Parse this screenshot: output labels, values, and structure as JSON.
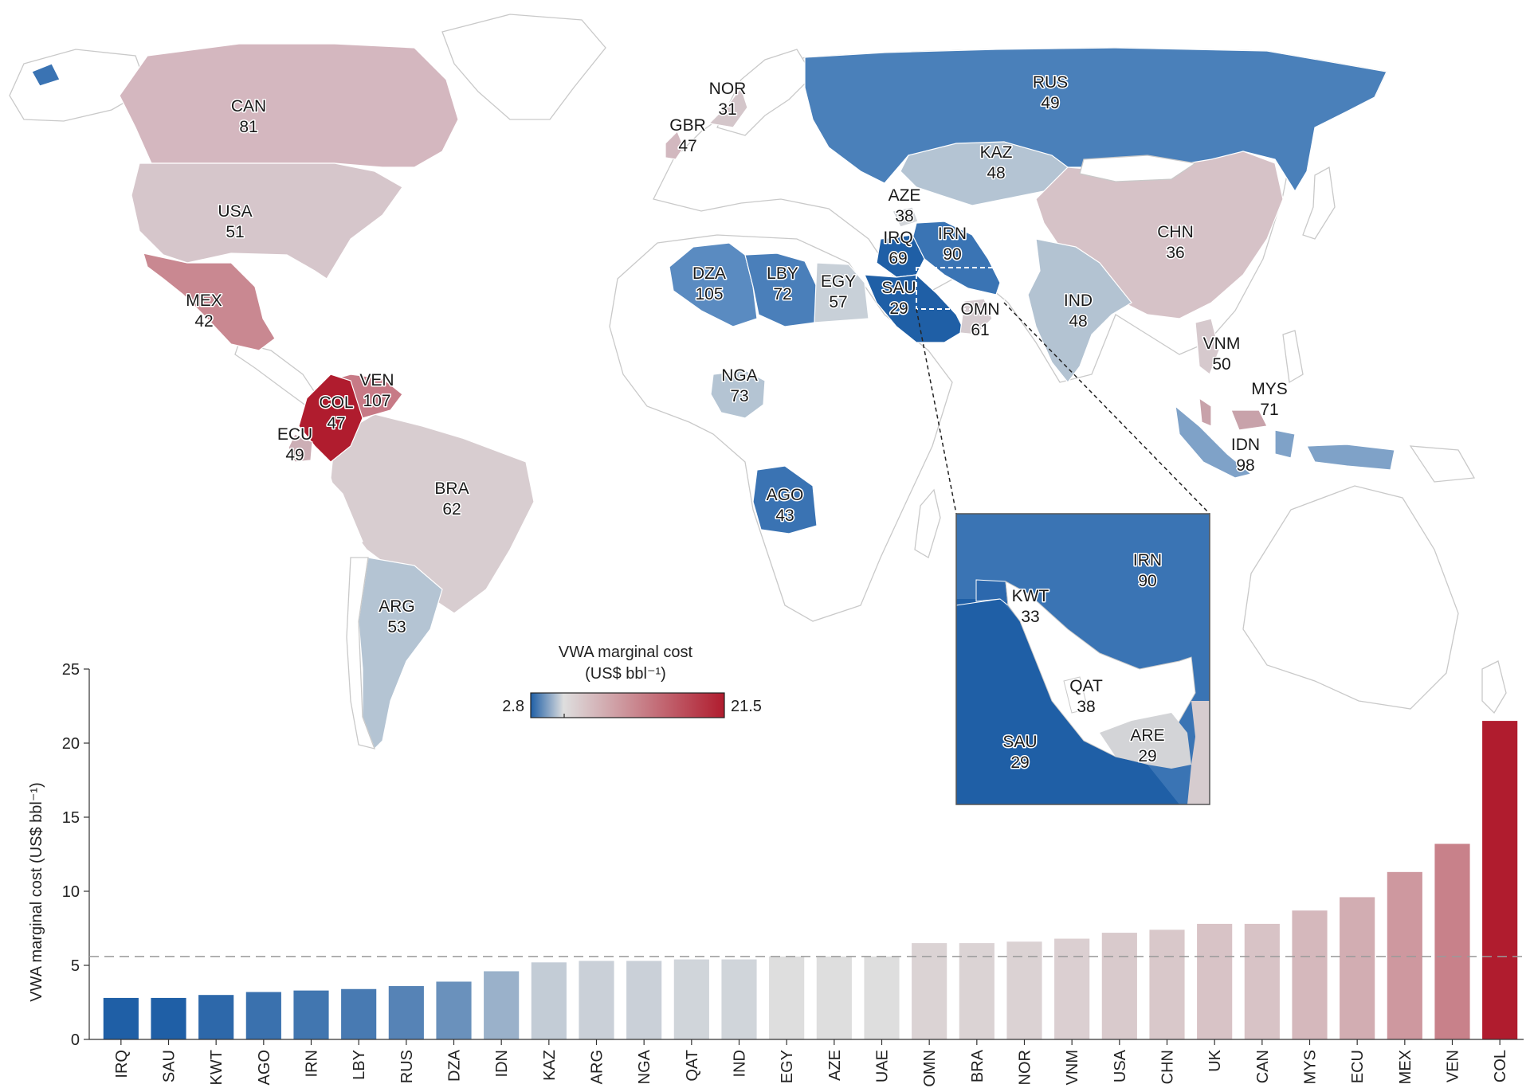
{
  "chart_data": {
    "type": "bar",
    "ylabel": "VWA marginal cost (US$ bbl⁻¹)",
    "ylim": [
      0,
      25
    ],
    "yticks": [
      0,
      5,
      10,
      15,
      20,
      25
    ],
    "reference_line": 5.6,
    "categories": [
      "IRQ",
      "SAU",
      "KWT",
      "AGO",
      "IRN",
      "LBY",
      "RUS",
      "DZA",
      "IDN",
      "KAZ",
      "ARG",
      "NGA",
      "QAT",
      "IND",
      "EGY",
      "AZE",
      "UAE",
      "OMN",
      "BRA",
      "NOR",
      "VNM",
      "USA",
      "CHN",
      "UK",
      "CAN",
      "MYS",
      "ECU",
      "MEX",
      "VEN",
      "COL"
    ],
    "values": [
      2.8,
      2.8,
      3.0,
      3.2,
      3.3,
      3.4,
      3.6,
      3.9,
      4.6,
      5.2,
      5.3,
      5.3,
      5.4,
      5.4,
      5.6,
      5.6,
      5.6,
      6.5,
      6.5,
      6.6,
      6.8,
      7.2,
      7.4,
      7.8,
      7.8,
      8.7,
      9.6,
      11.3,
      13.2,
      21.5
    ],
    "legend": {
      "title_line1": "VWA marginal cost",
      "title_line2": "(US$ bbl⁻¹)",
      "min_label": "2.8",
      "max_label": "21.5",
      "min": 2.8,
      "max": 21.5,
      "colors": [
        "#1f5fa6",
        "#dedede",
        "#b01c2e"
      ]
    },
    "map_labels": [
      {
        "code": "CAN",
        "num": "81"
      },
      {
        "code": "USA",
        "num": "51"
      },
      {
        "code": "MEX",
        "num": "42"
      },
      {
        "code": "VEN",
        "num": "107"
      },
      {
        "code": "COL",
        "num": "47"
      },
      {
        "code": "ECU",
        "num": "49"
      },
      {
        "code": "BRA",
        "num": "62"
      },
      {
        "code": "ARG",
        "num": "53"
      },
      {
        "code": "NOR",
        "num": "31"
      },
      {
        "code": "GBR",
        "num": "47"
      },
      {
        "code": "RUS",
        "num": "49"
      },
      {
        "code": "KAZ",
        "num": "48"
      },
      {
        "code": "AZE",
        "num": "38"
      },
      {
        "code": "IRQ",
        "num": "69"
      },
      {
        "code": "IRN",
        "num": "90"
      },
      {
        "code": "DZA",
        "num": "105"
      },
      {
        "code": "LBY",
        "num": "72"
      },
      {
        "code": "EGY",
        "num": "57"
      },
      {
        "code": "SAU",
        "num": "29"
      },
      {
        "code": "OMN",
        "num": "61"
      },
      {
        "code": "NGA",
        "num": "73"
      },
      {
        "code": "AGO",
        "num": "43"
      },
      {
        "code": "CHN",
        "num": "36"
      },
      {
        "code": "IND",
        "num": "48"
      },
      {
        "code": "VNM",
        "num": "50"
      },
      {
        "code": "MYS",
        "num": "71"
      },
      {
        "code": "IDN",
        "num": "98"
      }
    ],
    "inset_labels": [
      {
        "code": "IRN",
        "num": "90"
      },
      {
        "code": "KWT",
        "num": "33"
      },
      {
        "code": "QAT",
        "num": "38"
      },
      {
        "code": "SAU",
        "num": "29"
      },
      {
        "code": "ARE",
        "num": "29"
      }
    ]
  }
}
